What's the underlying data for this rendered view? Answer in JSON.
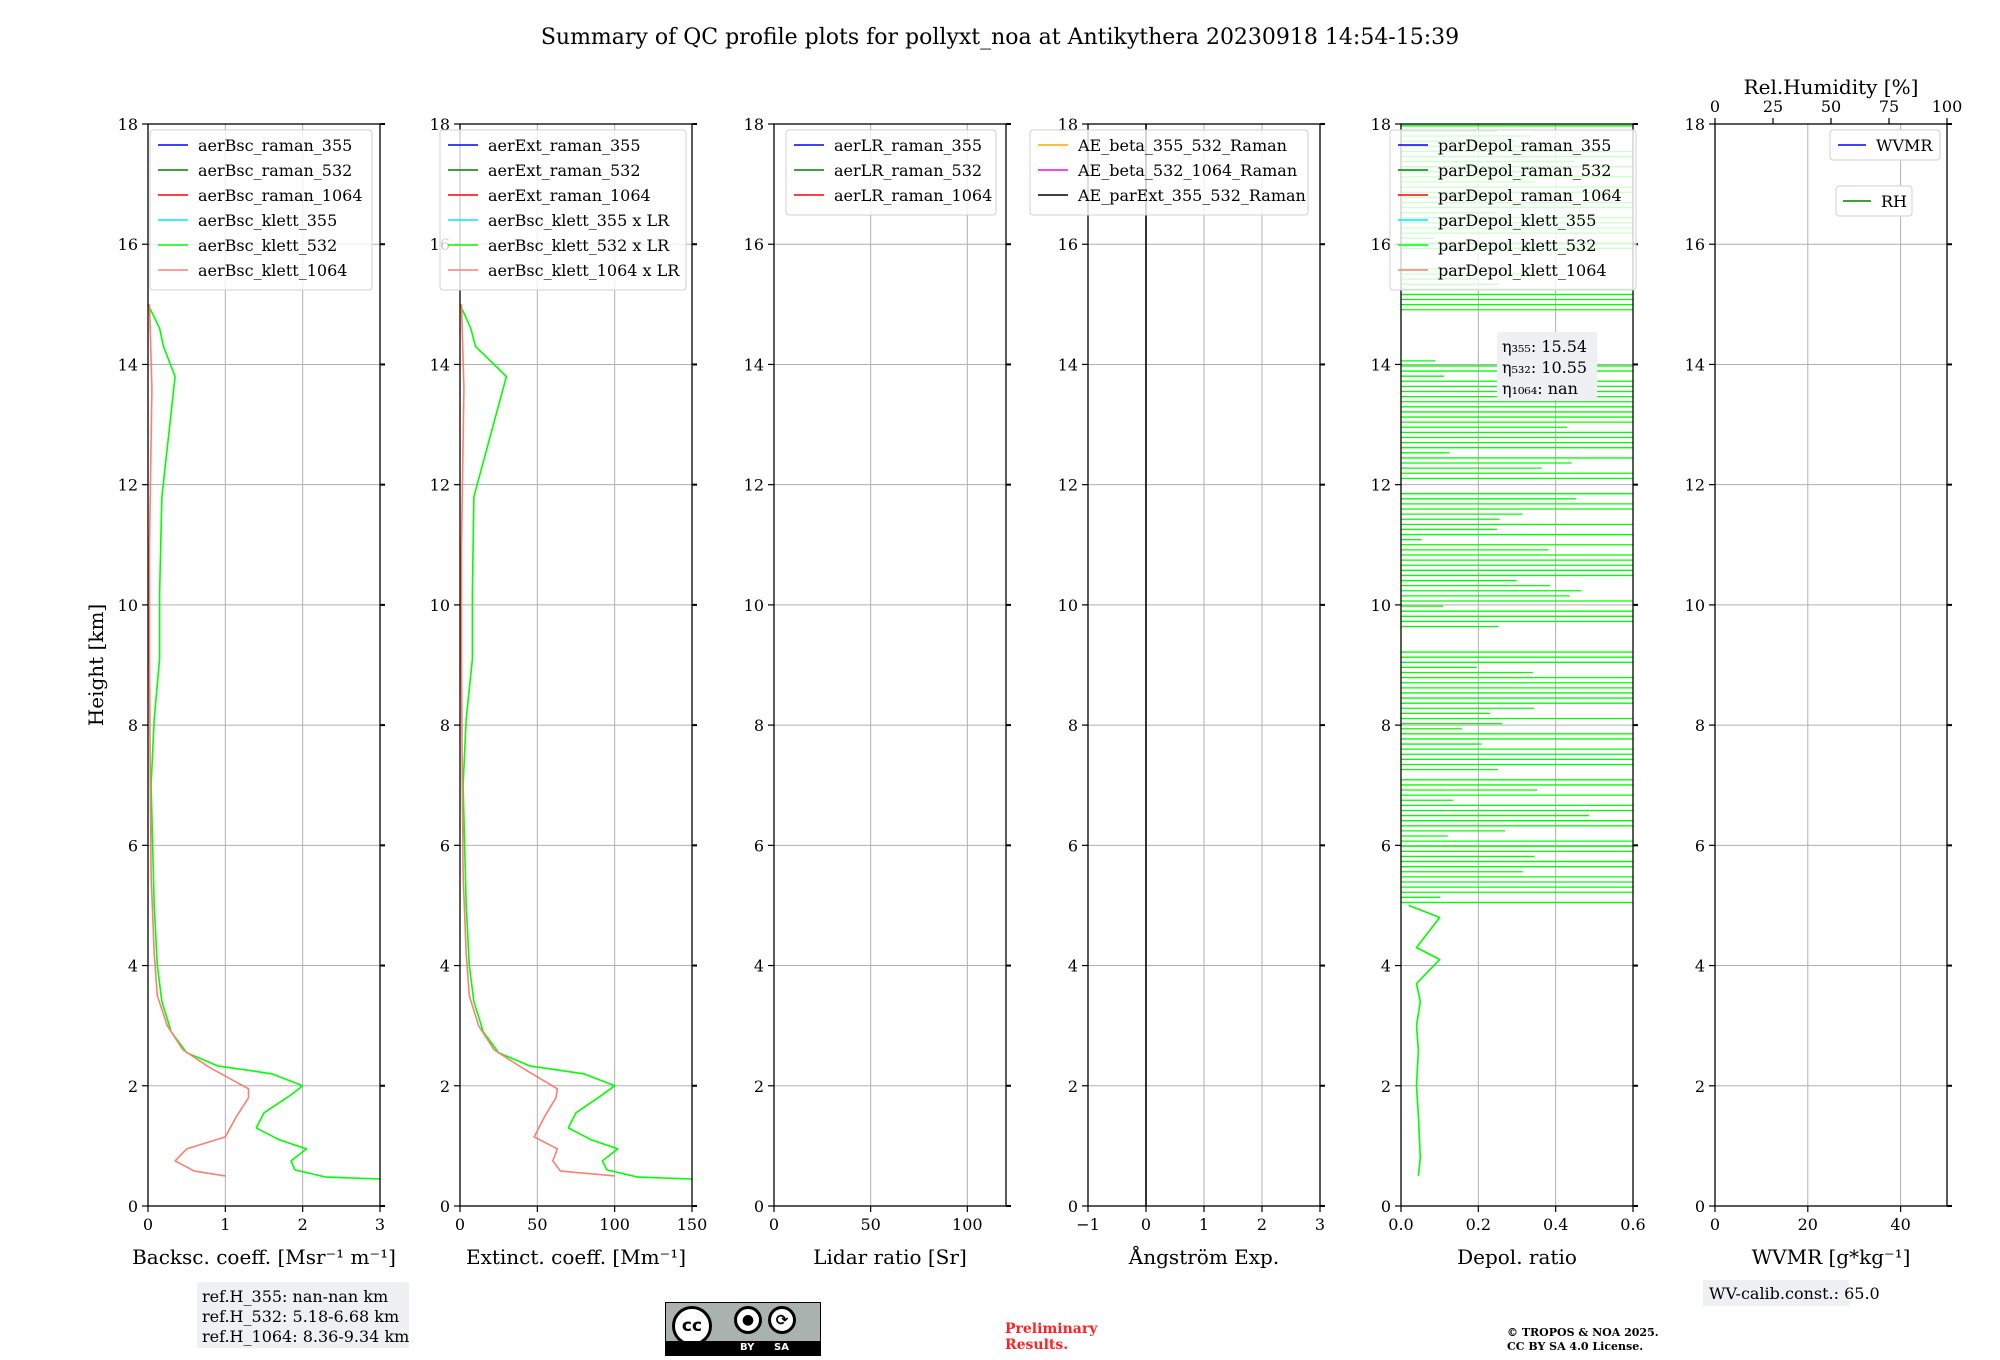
{
  "title": "Summary of QC profile plots for pollyxt_noa at Antikythera 20230918 14:54-15:39",
  "colors": {
    "blue": "#0000ff",
    "green": "#008000",
    "red": "#ff0000",
    "cyan": "#00e5ff",
    "lime": "#00ff00",
    "salmon": "#fa8072",
    "orange": "#ffa500",
    "magenta": "#ff00ff",
    "black": "#000000"
  },
  "chart_data": [
    {
      "type": "line",
      "xlabel": "Backsc. coeff. [Msr⁻¹ m⁻¹]",
      "ylabel": "Height [km]",
      "xlim": [
        0,
        3
      ],
      "ylim": [
        0,
        18
      ],
      "grid": true,
      "xticks": [
        "0",
        "1",
        "2",
        "3"
      ],
      "yticks": [
        "0",
        "2",
        "4",
        "6",
        "8",
        "10",
        "12",
        "14",
        "16",
        "18"
      ],
      "legend_position": "top-right",
      "legend": [
        "aerBsc_raman_355",
        "aerBsc_raman_532",
        "aerBsc_raman_1064",
        "aerBsc_klett_355",
        "aerBsc_klett_532",
        "aerBsc_klett_1064"
      ],
      "series": [
        {
          "name": "aerBsc_klett_532",
          "color": "#00ff00",
          "points": [
            [
              3.0,
              0.45
            ],
            [
              2.3,
              0.48
            ],
            [
              1.9,
              0.6
            ],
            [
              1.85,
              0.75
            ],
            [
              2.05,
              0.95
            ],
            [
              1.7,
              1.1
            ],
            [
              1.4,
              1.3
            ],
            [
              1.5,
              1.55
            ],
            [
              1.85,
              1.85
            ],
            [
              2.0,
              2.0
            ],
            [
              1.6,
              2.2
            ],
            [
              0.9,
              2.33
            ],
            [
              0.5,
              2.55
            ],
            [
              0.3,
              2.9
            ],
            [
              0.18,
              3.4
            ],
            [
              0.12,
              4.0
            ],
            [
              0.08,
              5.0
            ],
            [
              0.04,
              7.0
            ],
            [
              0.08,
              8.1
            ],
            [
              0.15,
              9.1
            ],
            [
              0.15,
              10.2
            ],
            [
              0.18,
              11.8
            ],
            [
              0.35,
              13.8
            ],
            [
              0.2,
              14.3
            ],
            [
              0.15,
              14.6
            ],
            [
              0.0,
              15.0
            ]
          ]
        },
        {
          "name": "aerBsc_klett_1064",
          "color": "#fa8072",
          "points": [
            [
              1.0,
              0.5
            ],
            [
              0.6,
              0.58
            ],
            [
              0.35,
              0.75
            ],
            [
              0.5,
              0.95
            ],
            [
              1.0,
              1.15
            ],
            [
              1.15,
              1.5
            ],
            [
              1.3,
              1.8
            ],
            [
              1.3,
              1.95
            ],
            [
              0.8,
              2.3
            ],
            [
              0.45,
              2.6
            ],
            [
              0.25,
              3.0
            ],
            [
              0.12,
              3.5
            ],
            [
              0.08,
              4.2
            ],
            [
              0.04,
              5.5
            ],
            [
              0.03,
              7.0
            ],
            [
              0.02,
              9.0
            ],
            [
              0.02,
              11.0
            ],
            [
              0.05,
              13.6
            ],
            [
              0.02,
              15.0
            ]
          ]
        }
      ],
      "annotations": [
        "ref.H_355: nan-nan km",
        "ref.H_532: 5.18-6.68 km",
        "ref.H_1064: 8.36-9.34 km"
      ]
    },
    {
      "type": "line",
      "xlabel": "Extinct. coeff. [Mm⁻¹]",
      "xlim": [
        0,
        150
      ],
      "ylim": [
        0,
        18
      ],
      "grid": true,
      "xticks": [
        "0",
        "50",
        "100",
        "150"
      ],
      "yticks": [
        "0",
        "2",
        "4",
        "6",
        "8",
        "10",
        "12",
        "14",
        "16",
        "18"
      ],
      "legend_position": "top-right",
      "legend": [
        "aerExt_raman_355",
        "aerExt_raman_532",
        "aerExt_raman_1064",
        "aerBsc_klett_355 x LR",
        "aerBsc_klett_532 x LR",
        "aerBsc_klett_1064 x LR"
      ],
      "series": [
        {
          "name": "aerBsc_klett_532 x LR",
          "color": "#00ff00",
          "points": [
            [
              150,
              0.45
            ],
            [
              115,
              0.48
            ],
            [
              95,
              0.6
            ],
            [
              92,
              0.75
            ],
            [
              102,
              0.95
            ],
            [
              85,
              1.1
            ],
            [
              70,
              1.3
            ],
            [
              75,
              1.55
            ],
            [
              92,
              1.85
            ],
            [
              100,
              2.0
            ],
            [
              80,
              2.2
            ],
            [
              45,
              2.33
            ],
            [
              25,
              2.55
            ],
            [
              15,
              2.9
            ],
            [
              9,
              3.4
            ],
            [
              6,
              4.0
            ],
            [
              4,
              5.0
            ],
            [
              2,
              7.0
            ],
            [
              4,
              8.1
            ],
            [
              8,
              9.1
            ],
            [
              8,
              10.2
            ],
            [
              9,
              11.8
            ],
            [
              30,
              13.8
            ],
            [
              10,
              14.3
            ],
            [
              7,
              14.6
            ],
            [
              0,
              15.0
            ]
          ]
        },
        {
          "name": "aerBsc_klett_1064 x LR",
          "color": "#fa8072",
          "points": [
            [
              100,
              0.5
            ],
            [
              65,
              0.58
            ],
            [
              60,
              0.75
            ],
            [
              63,
              0.95
            ],
            [
              48,
              1.15
            ],
            [
              55,
              1.5
            ],
            [
              62,
              1.8
            ],
            [
              63,
              1.95
            ],
            [
              40,
              2.3
            ],
            [
              22,
              2.6
            ],
            [
              12,
              3.0
            ],
            [
              6,
              3.5
            ],
            [
              4,
              4.2
            ],
            [
              2,
              5.5
            ],
            [
              1.5,
              7.0
            ],
            [
              1,
              9.0
            ],
            [
              1,
              11.0
            ],
            [
              2.5,
              13.6
            ],
            [
              1,
              15.0
            ]
          ]
        }
      ]
    },
    {
      "type": "line",
      "xlabel": "Lidar ratio [Sr]",
      "xlim": [
        0,
        120
      ],
      "ylim": [
        0,
        18
      ],
      "grid": true,
      "xticks": [
        "0",
        "50",
        "100"
      ],
      "yticks": [
        "0",
        "2",
        "4",
        "6",
        "8",
        "10",
        "12",
        "14",
        "16",
        "18"
      ],
      "legend_position": "top-right",
      "legend": [
        "aerLR_raman_355",
        "aerLR_raman_532",
        "aerLR_raman_1064"
      ],
      "series": []
    },
    {
      "type": "line",
      "xlabel": "Ångström Exp.",
      "xlim": [
        -1,
        3
      ],
      "ylim": [
        0,
        18
      ],
      "grid": true,
      "xticks": [
        "−1",
        "0",
        "1",
        "2",
        "3"
      ],
      "yticks": [
        "0",
        "2",
        "4",
        "6",
        "8",
        "10",
        "12",
        "14",
        "16",
        "18"
      ],
      "legend_position": "top-right",
      "legend": [
        "AE_beta_355_532_Raman",
        "AE_beta_532_1064_Raman",
        "AE_parExt_355_532_Raman"
      ],
      "series": [
        {
          "name": "AE_parExt_355_532_Raman",
          "color": "#000000",
          "points": [
            [
              0,
              0
            ],
            [
              0,
              18
            ]
          ]
        }
      ]
    },
    {
      "type": "line",
      "xlabel": "Depol. ratio",
      "xlim": [
        0,
        0.6
      ],
      "ylim": [
        0,
        18
      ],
      "grid": true,
      "xticks": [
        "0.0",
        "0.2",
        "0.4",
        "0.6"
      ],
      "yticks": [
        "0",
        "2",
        "4",
        "6",
        "8",
        "10",
        "12",
        "14",
        "16",
        "18"
      ],
      "legend_position": "top-right",
      "legend": [
        "parDepol_raman_355",
        "parDepol_raman_532",
        "parDepol_raman_1064",
        "parDepol_klett_355",
        "parDepol_klett_532",
        "parDepol_klett_1064"
      ],
      "series": [
        {
          "name": "parDepol_klett_532",
          "color": "#00ff00",
          "points": [
            [
              0.045,
              0.5
            ],
            [
              0.05,
              0.8
            ],
            [
              0.045,
              1.5
            ],
            [
              0.04,
              2.0
            ],
            [
              0.045,
              2.6
            ],
            [
              0.04,
              3.0
            ],
            [
              0.05,
              3.4
            ],
            [
              0.04,
              3.7
            ],
            [
              0.07,
              3.9
            ],
            [
              0.1,
              4.1
            ],
            [
              0.04,
              4.3
            ],
            [
              0.1,
              4.8
            ],
            [
              0.02,
              5.0
            ]
          ]
        }
      ],
      "annotations": [
        "η₃₅₅: 15.54",
        "η₅₃₂: 10.55",
        "η₁₀₆₄: nan"
      ]
    },
    {
      "type": "line",
      "xlabel": "WVMR [g*kg⁻¹]",
      "xlim": [
        0,
        50
      ],
      "ylim": [
        0,
        18
      ],
      "grid": true,
      "xticks": [
        "0",
        "20",
        "40"
      ],
      "yticks": [
        "0",
        "2",
        "4",
        "6",
        "8",
        "10",
        "12",
        "14",
        "16",
        "18"
      ],
      "top_xlabel": "Rel.Humidity [%]",
      "top_xticks": [
        "0",
        "25",
        "50",
        "75",
        "100"
      ],
      "legend": [
        "WVMR",
        "RH"
      ],
      "series": [],
      "annotations": [
        "WV-calib.const.: 65.0"
      ]
    }
  ],
  "footer": {
    "preliminary": [
      "Preliminary",
      "Results."
    ],
    "copyright": [
      "© TROPOS & NOA 2025.",
      "CC BY SA 4.0 License."
    ],
    "license_badge": {
      "cc": "cc",
      "by": "BY",
      "sa": "SA"
    }
  }
}
